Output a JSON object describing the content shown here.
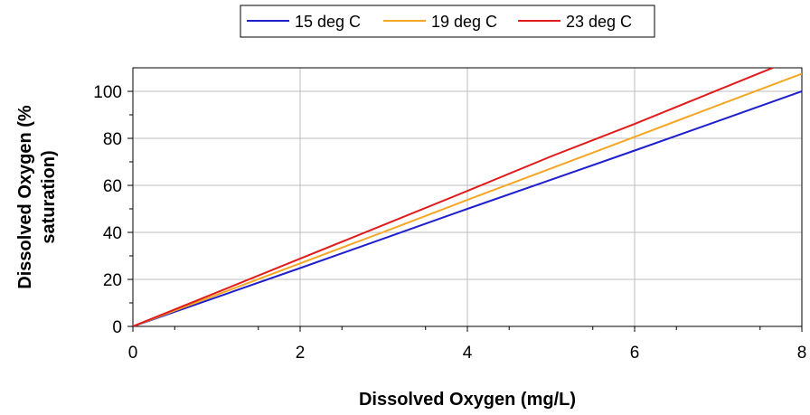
{
  "chart_data": {
    "type": "line",
    "title": "",
    "xlabel": "Dissolved Oxygen (mg/L)",
    "ylabel_lines": [
      "Dissolved Oxygen (%",
      "saturation)"
    ],
    "xlim": [
      0,
      8
    ],
    "ylim": [
      0,
      110
    ],
    "x_ticks": [
      "0",
      "2",
      "4",
      "6",
      "8"
    ],
    "y_ticks": [
      "0",
      "20",
      "40",
      "60",
      "80",
      "100"
    ],
    "grid": true,
    "legend_position": "top-center",
    "x": [
      0,
      1,
      2,
      3,
      4,
      5,
      6,
      7,
      8
    ],
    "series": [
      {
        "name": "15 deg C",
        "color": "#1f1fcc",
        "values": [
          0,
          12.4,
          24.8,
          37.4,
          50,
          62.4,
          74.8,
          87.4,
          100
        ]
      },
      {
        "name": "19 deg C",
        "color": "#f5a623",
        "values": [
          0,
          13.4,
          26.8,
          40.2,
          53.8,
          67.2,
          80.6,
          94.1,
          107.5
        ]
      },
      {
        "name": "23 deg C",
        "color": "#e01b1b",
        "values": [
          0,
          14.4,
          28.8,
          43.2,
          57.6,
          72.3,
          86.1,
          100.6,
          115
        ]
      }
    ]
  }
}
